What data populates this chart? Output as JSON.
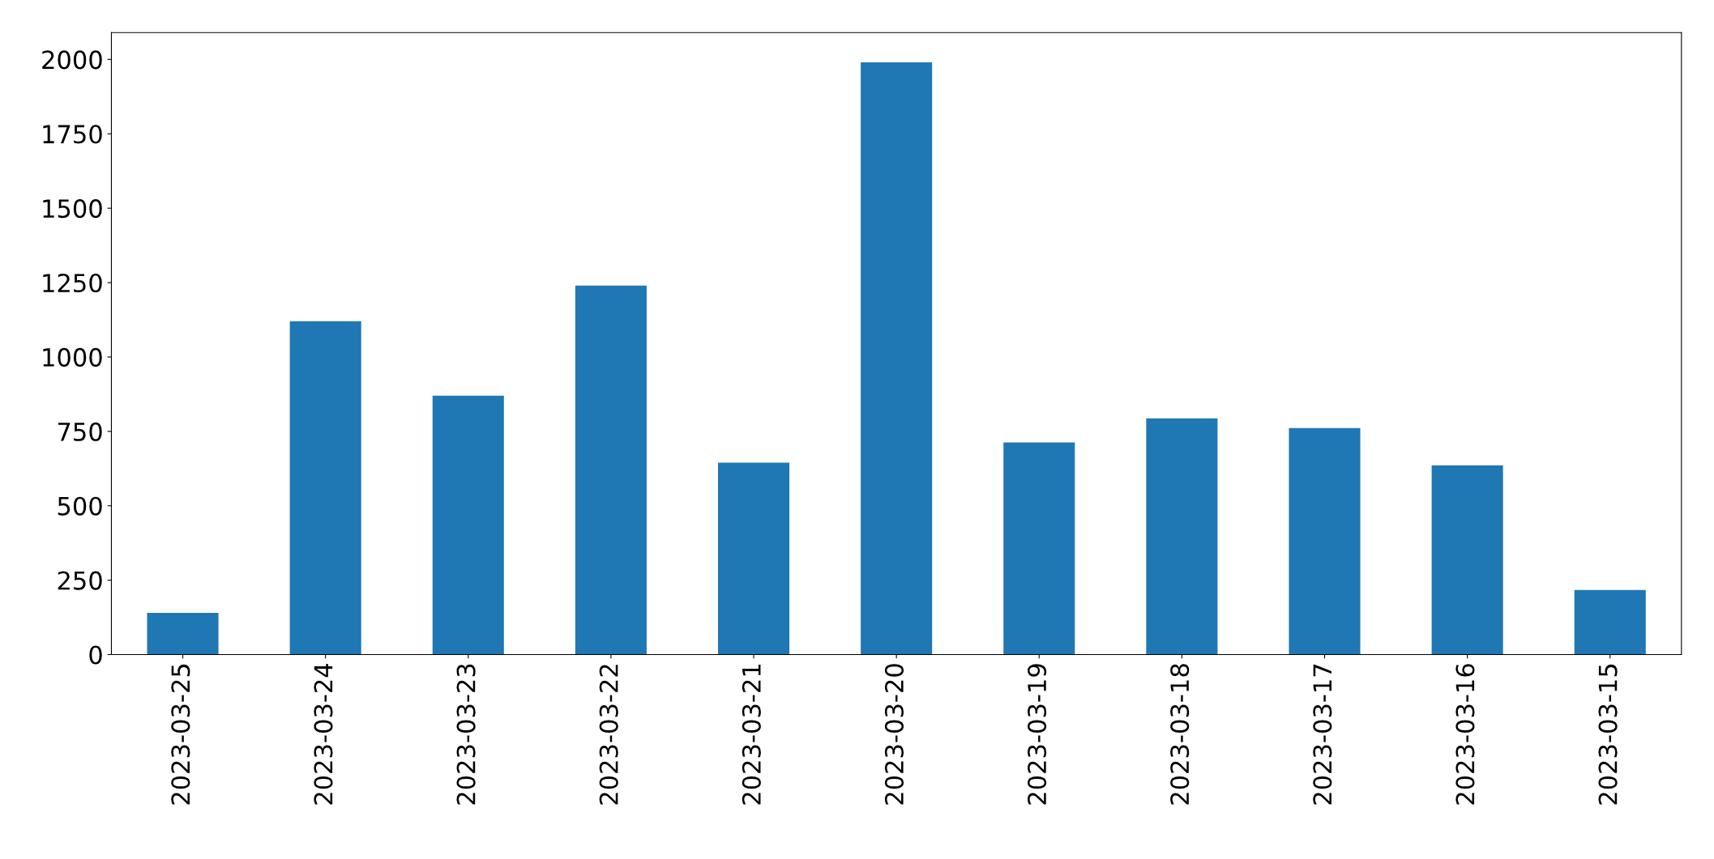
{
  "chart_data": {
    "type": "bar",
    "categories": [
      "2023-03-25",
      "2023-03-24",
      "2023-03-23",
      "2023-03-22",
      "2023-03-21",
      "2023-03-20",
      "2023-03-19",
      "2023-03-18",
      "2023-03-17",
      "2023-03-16",
      "2023-03-15"
    ],
    "values": [
      140,
      1120,
      870,
      1240,
      645,
      1990,
      713,
      794,
      761,
      636,
      217
    ],
    "color": "#1f77b4",
    "ylim": [
      0,
      2090
    ],
    "yticks": [
      0,
      250,
      500,
      750,
      1000,
      1250,
      1500,
      1750,
      2000
    ],
    "grid": false,
    "legend": false
  }
}
